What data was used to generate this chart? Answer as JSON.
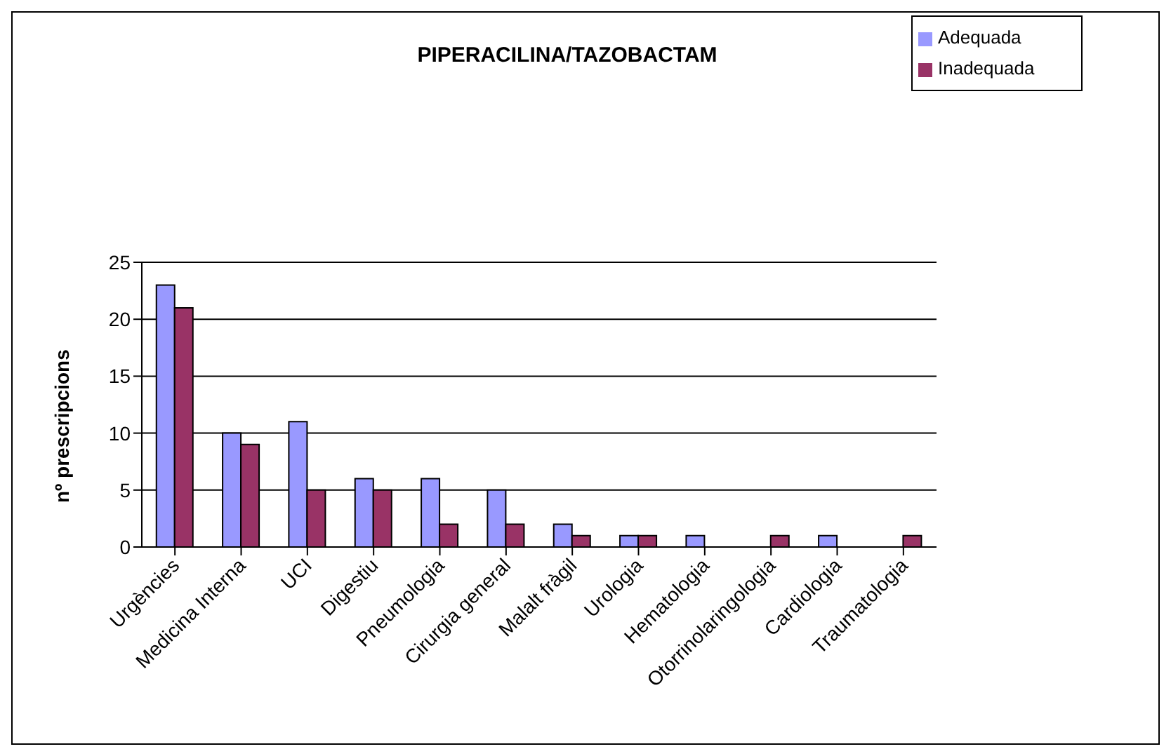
{
  "chart_data": {
    "type": "bar",
    "title": "PIPERACILINA/TAZOBACTAM",
    "ylabel": "nº prescripcions",
    "categories": [
      "Urgències",
      "Medicina Interna",
      "UCI",
      "Digestiu",
      "Pneumologia",
      "Cirurgia general",
      "Malalt fràgil",
      "Urologia",
      "Hematologia",
      "Otorrinolaringologia",
      "Cardiologia",
      "Traumatologia"
    ],
    "series": [
      {
        "name": "Adequada",
        "color": "#9999ff",
        "values": [
          23,
          10,
          11,
          6,
          6,
          5,
          2,
          1,
          1,
          0,
          1,
          0
        ]
      },
      {
        "name": "Inadequada",
        "color": "#993366",
        "values": [
          21,
          9,
          5,
          5,
          2,
          2,
          1,
          1,
          0,
          1,
          0,
          1
        ]
      }
    ],
    "ylim": [
      0,
      25
    ],
    "yticks": [
      0,
      5,
      10,
      15,
      20,
      25
    ],
    "grid": "y",
    "legend": "top right"
  }
}
